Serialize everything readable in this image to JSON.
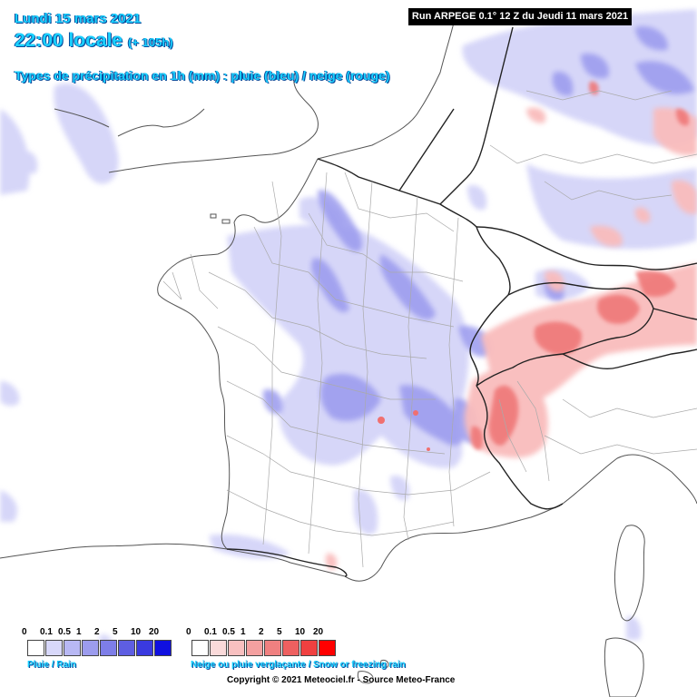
{
  "header": {
    "date": "Lundi 15 mars 2021",
    "time": "22:00 locale",
    "offset": "(+ 105h)",
    "type_line": "Types de précipitation en 1h (mm) : pluie (bleu) / neige (rouge)"
  },
  "run_info": "Run ARPEGE 0.1° 12 Z du Jeudi 11 mars 2021",
  "legend": {
    "rain": {
      "label": "Pluie / Rain",
      "ticks": [
        "0",
        "0.1",
        "0.5",
        "1",
        "2",
        "5",
        "10",
        "20"
      ],
      "colors": [
        "#ffffff",
        "#d8d8fa",
        "#b8b8f4",
        "#9c9cee",
        "#7e7ee8",
        "#5e5ee2",
        "#3a3ae0",
        "#1010e0"
      ]
    },
    "snow": {
      "label": "Neige ou pluie verglaçante / Snow or freezing rain",
      "ticks": [
        "0",
        "0.1",
        "0.5",
        "1",
        "2",
        "5",
        "10",
        "20"
      ],
      "colors": [
        "#ffffff",
        "#fadada",
        "#f8c0c0",
        "#f4a0a0",
        "#f08080",
        "#ee6060",
        "#f04040",
        "#ff0000"
      ]
    }
  },
  "copyright": "Copyright © 2021 Meteociel.fr - Source Meteo-France",
  "colors": {
    "title": "#19d0ff",
    "coast": "#555555",
    "border": "#222222",
    "department": "#999999",
    "rain_light": "#c8c8f6",
    "rain_medium": "#8a8ae8",
    "snow_light": "#f8b4b4",
    "snow_medium": "#ee6a6a"
  }
}
